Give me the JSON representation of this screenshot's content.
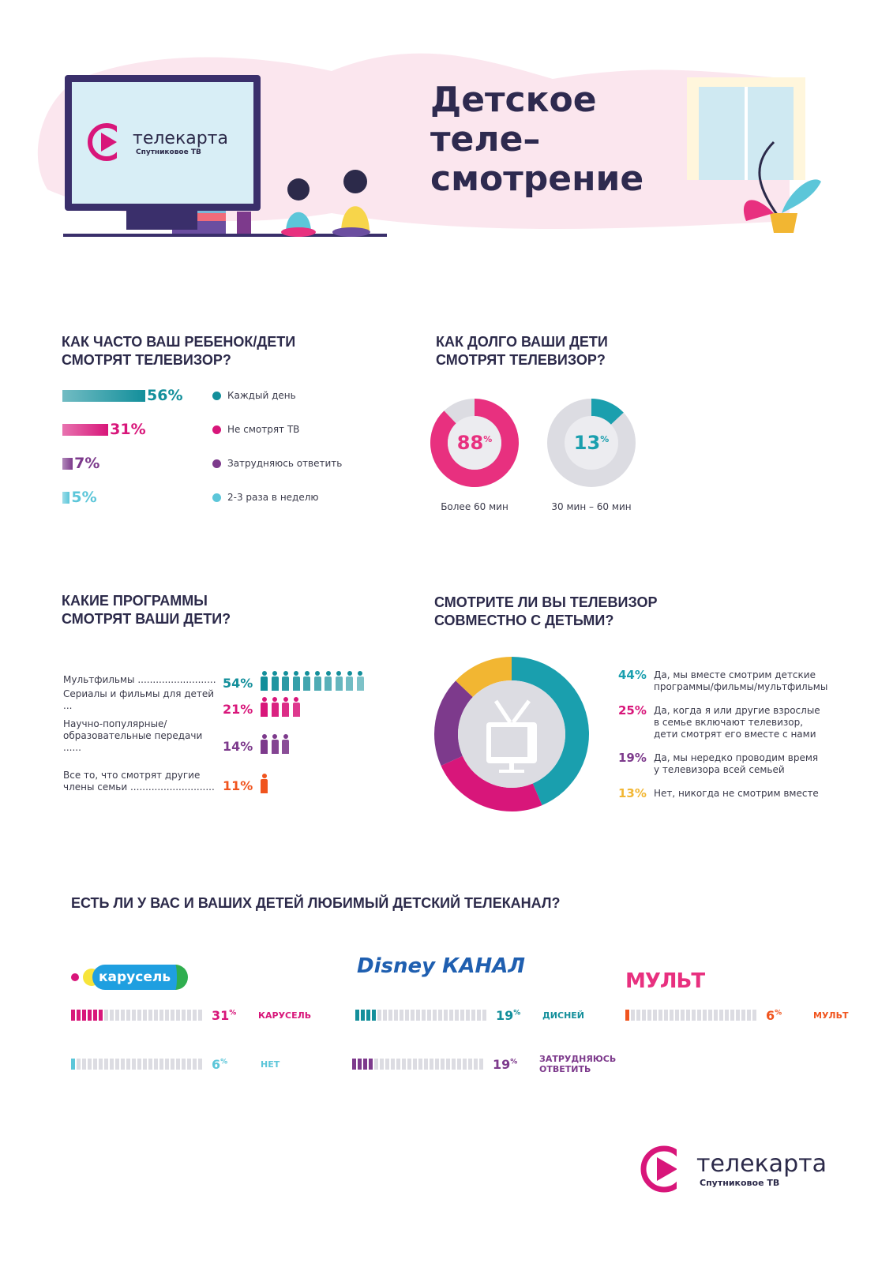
{
  "header": {
    "title": "Детское\nтеле–\nсмотрение",
    "logo_name": "телекарта",
    "logo_sub": "Спутниковое ТВ"
  },
  "colors": {
    "teal": "#138f9b",
    "magenta": "#d8167a",
    "purple": "#7d3a8c",
    "cyan": "#5cc6d9",
    "orange": "#f0541e",
    "yellow": "#f2b632",
    "grey": "#dcdce2"
  },
  "chart_data": [
    {
      "type": "bar",
      "title": "КАК ЧАСТО ВАШ РЕБЕНОК/ДЕТИ\nСМОТРЯТ ТЕЛЕВИЗОР?",
      "categories": [
        "Каждый день",
        "Не смотрят ТВ",
        "Затрудняюсь ответить",
        "2-3 раза в неделю"
      ],
      "values": [
        56,
        31,
        7,
        5
      ],
      "labels": [
        "56%",
        "31%",
        "7%",
        "5%"
      ],
      "colors": [
        "#138f9b",
        "#d8167a",
        "#7d3a8c",
        "#5cc6d9"
      ]
    },
    {
      "type": "pie",
      "title": "КАК ДОЛГО ВАШИ ДЕТИ\nСМОТРЯТ ТЕЛЕВИЗОР?",
      "items": [
        {
          "label": "Более 60 мин",
          "value": 88,
          "text": "88",
          "color": "#e8307f"
        },
        {
          "label": "30 мин – 60 мин",
          "value": 13,
          "text": "13",
          "color": "#1a9fae"
        }
      ],
      "percent_sign": "%"
    },
    {
      "type": "bar",
      "title": "КАКИЕ ПРОГРАММЫ\nСМОТРЯТ ВАШИ ДЕТИ?",
      "rows": [
        {
          "label": "Мультфильмы ..........................",
          "value": 54,
          "text": "54%",
          "icons": 10,
          "color": "#138f9b"
        },
        {
          "label": "Сериалы и фильмы для детей ...",
          "value": 21,
          "text": "21%",
          "icons": 4,
          "color": "#d8167a"
        },
        {
          "label": "Научно-популярные/\nобразовательные передачи ......",
          "value": 14,
          "text": "14%",
          "icons": 3,
          "color": "#7d3a8c"
        },
        {
          "label": "Все то, что смотрят другие\nчлены семьи ............................",
          "value": 11,
          "text": "11%",
          "icons": 1,
          "color": "#f0541e"
        }
      ]
    },
    {
      "type": "pie",
      "title": "СМОТРИТЕ ЛИ ВЫ ТЕЛЕВИЗОР\nСОВМЕСТНО С ДЕТЬМИ?",
      "items": [
        {
          "value": 44,
          "text": "44%",
          "label": "Да, мы вместе смотрим детские\nпрограммы/фильмы/мультфильмы",
          "color": "#1a9fae"
        },
        {
          "value": 25,
          "text": "25%",
          "label": "Да, когда я или другие взрослые\nв семье включают телевизор,\nдети смотрят его вместе с нами",
          "color": "#d8167a"
        },
        {
          "value": 19,
          "text": "19%",
          "label": "Да, мы нередко проводим время\nу телевизора всей семьей",
          "color": "#7d3a8c"
        },
        {
          "value": 13,
          "text": "13%",
          "label": "Нет, никогда не смотрим вместе",
          "color": "#f2b632"
        }
      ]
    },
    {
      "type": "bar",
      "title": "ЕСТЬ ЛИ У ВАС И ВАШИХ ДЕТЕЙ ЛЮБИМЫЙ ДЕТСКИЙ ТЕЛЕКАНАЛ?",
      "logos": [
        "карусель",
        "Disney КАНАЛ",
        "МУЛЬТ"
      ],
      "items": [
        {
          "label": "КАРУСЕЛЬ",
          "value": 31,
          "num": "31",
          "color": "#d8167a"
        },
        {
          "label": "ДИСНЕЙ",
          "value": 19,
          "num": "19",
          "color": "#138f9b"
        },
        {
          "label": "МУЛЬТ",
          "value": 6,
          "num": "6",
          "color": "#f0541e"
        },
        {
          "label": "НЕТ",
          "value": 6,
          "num": "6",
          "color": "#5cc6d9"
        },
        {
          "label": "ЗАТРУДНЯЮСЬ ОТВЕТИТЬ",
          "value": 19,
          "num": "19",
          "color": "#7d3a8c"
        }
      ],
      "percent_sign": "%"
    }
  ],
  "footer": {
    "logo_name": "телекарта",
    "logo_sub": "Спутниковое ТВ"
  }
}
